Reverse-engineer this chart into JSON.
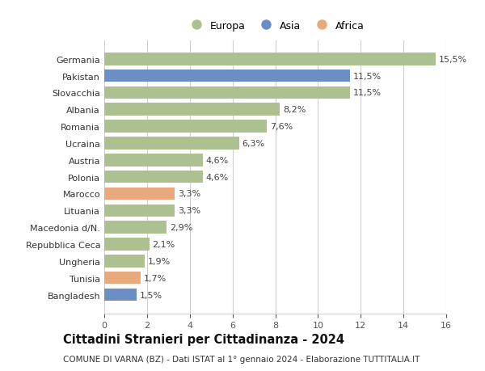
{
  "countries": [
    "Germania",
    "Pakistan",
    "Slovacchia",
    "Albania",
    "Romania",
    "Ucraina",
    "Austria",
    "Polonia",
    "Marocco",
    "Lituania",
    "Macedonia d/N.",
    "Repubblica Ceca",
    "Ungheria",
    "Tunisia",
    "Bangladesh"
  ],
  "values": [
    15.5,
    11.5,
    11.5,
    8.2,
    7.6,
    6.3,
    4.6,
    4.6,
    3.3,
    3.3,
    2.9,
    2.1,
    1.9,
    1.7,
    1.5
  ],
  "labels": [
    "15,5%",
    "11,5%",
    "11,5%",
    "8,2%",
    "7,6%",
    "6,3%",
    "4,6%",
    "4,6%",
    "3,3%",
    "3,3%",
    "2,9%",
    "2,1%",
    "1,9%",
    "1,7%",
    "1,5%"
  ],
  "continents": [
    "Europa",
    "Asia",
    "Europa",
    "Europa",
    "Europa",
    "Europa",
    "Europa",
    "Europa",
    "Africa",
    "Europa",
    "Europa",
    "Europa",
    "Europa",
    "Africa",
    "Asia"
  ],
  "continent_colors": {
    "Europa": "#adc190",
    "Asia": "#6b8fc4",
    "Africa": "#e8aa7a"
  },
  "legend_labels": [
    "Europa",
    "Asia",
    "Africa"
  ],
  "legend_colors": [
    "#adc190",
    "#6b8fc4",
    "#e8aa7a"
  ],
  "xlim": [
    0,
    16
  ],
  "xticks": [
    0,
    2,
    4,
    6,
    8,
    10,
    12,
    14,
    16
  ],
  "title": "Cittadini Stranieri per Cittadinanza - 2024",
  "subtitle": "COMUNE DI VARNA (BZ) - Dati ISTAT al 1° gennaio 2024 - Elaborazione TUTTITALIA.IT",
  "background_color": "#ffffff",
  "grid_color": "#d0d0d0",
  "bar_height": 0.75,
  "label_fontsize": 8,
  "tick_fontsize": 8,
  "title_fontsize": 10.5,
  "subtitle_fontsize": 7.5
}
